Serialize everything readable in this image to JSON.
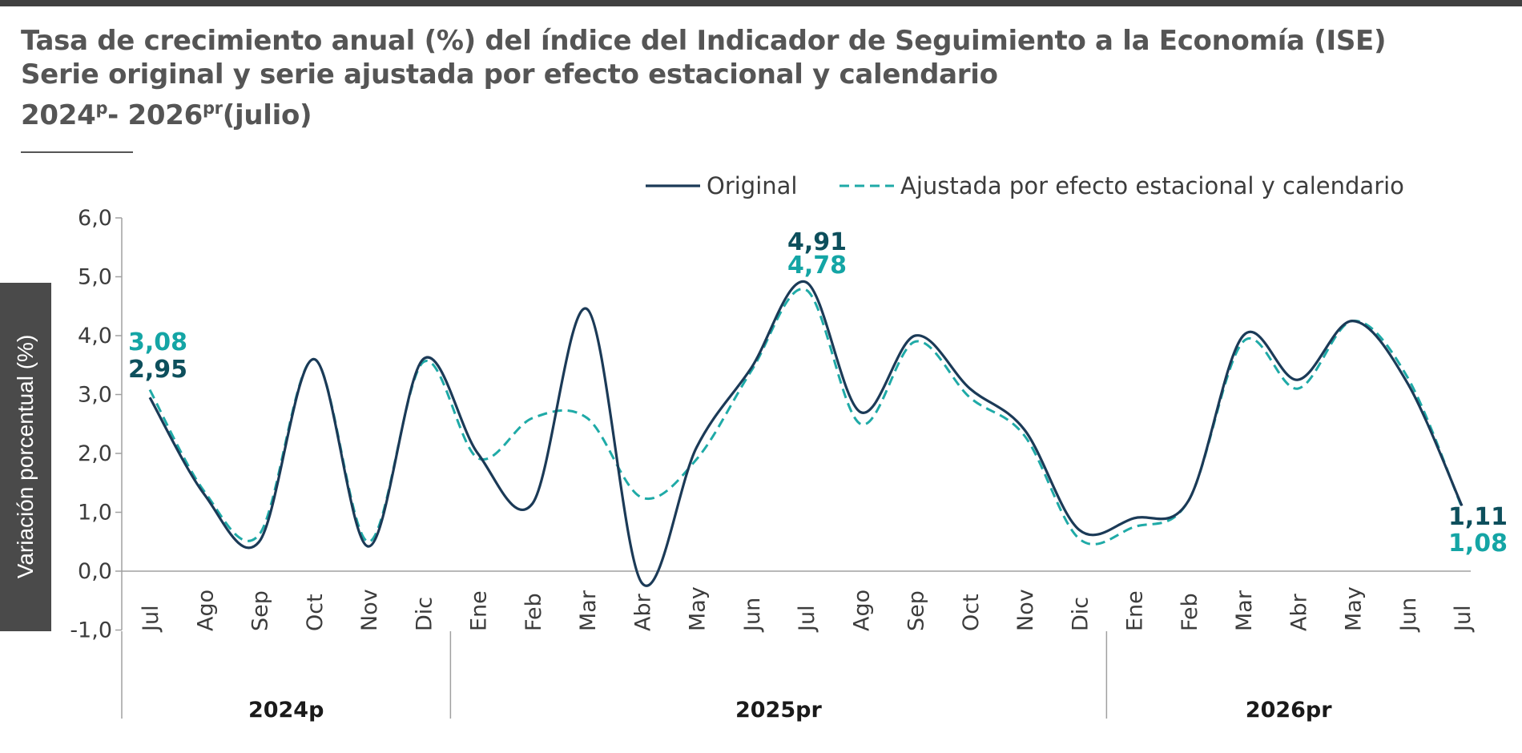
{
  "title": {
    "line1": "Tasa de crecimiento anual (%) del índice del Indicador de Seguimiento a la Economía (ISE)",
    "line2": "Serie original y serie ajustada por efecto estacional y calendario",
    "line3_start": "2024",
    "line3_sup1": "p",
    "line3_mid": "- 2026",
    "line3_sup2": "pr",
    "line3_end": "(julio)"
  },
  "chart_data": {
    "type": "line",
    "ylabel": "Variación porcentual (%)",
    "ylim": [
      -1,
      6
    ],
    "yticks": [
      "6,0",
      "5,0",
      "4,0",
      "3,0",
      "2,0",
      "1,0",
      "0,0",
      "-1,0"
    ],
    "ytick_values": [
      6,
      5,
      4,
      3,
      2,
      1,
      0,
      -1
    ],
    "categories": [
      "Jul",
      "Ago",
      "Sep",
      "Oct",
      "Nov",
      "Dic",
      "Ene",
      "Feb",
      "Mar",
      "Abr",
      "May",
      "Jun",
      "Jul",
      "Ago",
      "Sep",
      "Oct",
      "Nov",
      "Dic",
      "Ene",
      "Feb",
      "Mar",
      "Abr",
      "May",
      "Jun",
      "Jul"
    ],
    "year_groups": [
      {
        "label": "2024p",
        "count": 6
      },
      {
        "label": "2025pr",
        "count": 12
      },
      {
        "label": "2026pr",
        "count": 7
      }
    ],
    "legend_position": "top-right",
    "series": [
      {
        "name": "Original",
        "style": "solid",
        "color": "#1b3a57",
        "label_color": "#0d4f5c",
        "values": [
          2.95,
          1.3,
          0.5,
          3.6,
          0.42,
          3.6,
          2.0,
          1.15,
          4.45,
          -0.2,
          2.1,
          3.45,
          4.91,
          2.7,
          4.0,
          3.1,
          2.4,
          0.7,
          0.9,
          1.2,
          4.0,
          3.25,
          4.25,
          3.2,
          1.11
        ]
      },
      {
        "name": "Ajustada por efecto estacional y calendario",
        "style": "dashed",
        "color": "#1faaa7",
        "label_color": "#14a5a5",
        "values": [
          3.08,
          1.35,
          0.62,
          3.6,
          0.5,
          3.55,
          1.92,
          2.6,
          2.6,
          1.25,
          1.9,
          3.4,
          4.78,
          2.5,
          3.9,
          2.95,
          2.3,
          0.55,
          0.75,
          1.2,
          3.9,
          3.1,
          4.25,
          3.3,
          1.08
        ]
      }
    ],
    "annotations": [
      {
        "index": 0,
        "series": 1,
        "text": "3,08"
      },
      {
        "index": 0,
        "series": 0,
        "text": "2,95"
      },
      {
        "index": 12,
        "series": 0,
        "text": "4,91"
      },
      {
        "index": 12,
        "series": 1,
        "text": "4,78"
      },
      {
        "index": 24,
        "series": 0,
        "text": "1,11"
      },
      {
        "index": 24,
        "series": 1,
        "text": "1,08"
      }
    ]
  }
}
